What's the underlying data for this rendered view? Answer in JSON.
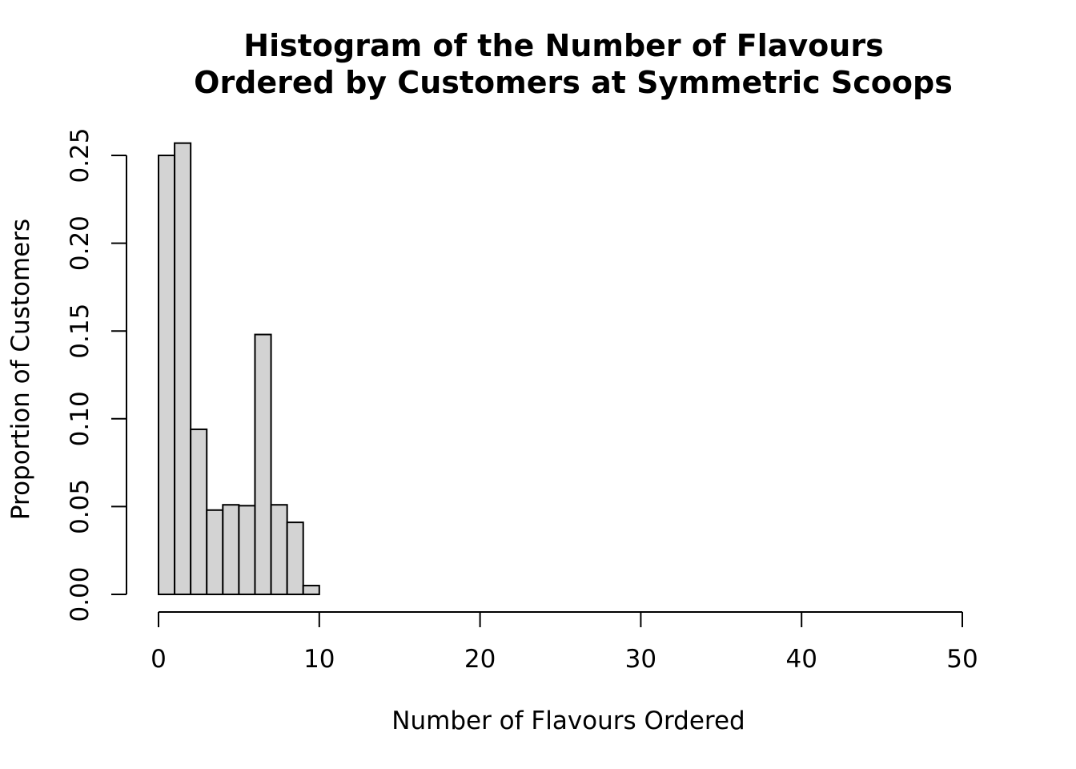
{
  "chart_data": {
    "type": "bar",
    "title": [
      "Histogram of the Number of Flavours",
      "Ordered by Customers at Symmetric Scoops"
    ],
    "xlabel": "Number of Flavours Ordered",
    "ylabel": "Proportion of Customers",
    "xlim": [
      0,
      50
    ],
    "ylim": [
      0,
      0.25
    ],
    "x_ticks": [
      "0",
      "10",
      "20",
      "30",
      "40",
      "50"
    ],
    "y_ticks": [
      "0.00",
      "0.05",
      "0.10",
      "0.15",
      "0.20",
      "0.25"
    ],
    "bin_width": 1,
    "bins": [
      {
        "start": 0,
        "end": 1,
        "value": 0.25
      },
      {
        "start": 1,
        "end": 2,
        "value": 0.257
      },
      {
        "start": 2,
        "end": 3,
        "value": 0.094
      },
      {
        "start": 3,
        "end": 4,
        "value": 0.048
      },
      {
        "start": 4,
        "end": 5,
        "value": 0.051
      },
      {
        "start": 5,
        "end": 6,
        "value": 0.0505
      },
      {
        "start": 6,
        "end": 7,
        "value": 0.148
      },
      {
        "start": 7,
        "end": 8,
        "value": 0.051
      },
      {
        "start": 8,
        "end": 9,
        "value": 0.041
      },
      {
        "start": 9,
        "end": 10,
        "value": 0.005
      },
      {
        "start": 10,
        "end": 51,
        "value": 0
      }
    ],
    "grid": false,
    "legend": "none"
  }
}
